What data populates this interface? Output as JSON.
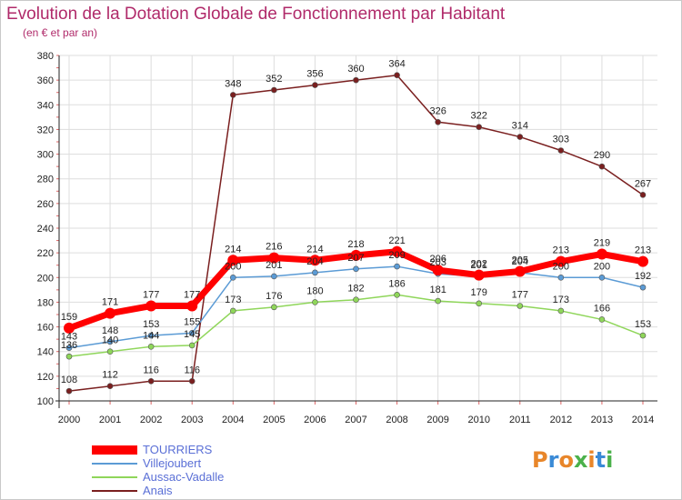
{
  "chart_data": {
    "type": "line",
    "title": "Evolution de la Dotation Globale de Fonctionnement par Habitant",
    "subtitle": "(en € et par an)",
    "x": [
      "2000",
      "2001",
      "2002",
      "2003",
      "2004",
      "2005",
      "2006",
      "2007",
      "2008",
      "2009",
      "2010",
      "2011",
      "2012",
      "2013",
      "2014"
    ],
    "ylim": [
      100,
      380
    ],
    "yticks": [
      100,
      120,
      140,
      160,
      180,
      200,
      220,
      240,
      260,
      280,
      300,
      320,
      340,
      360,
      380
    ],
    "grid": true,
    "legend_position": "bottom-left",
    "series": [
      {
        "name": "Anais",
        "color": "#7a1f1f",
        "values": [
          108,
          112,
          116,
          116,
          348,
          352,
          356,
          360,
          364,
          326,
          322,
          314,
          303,
          290,
          267
        ]
      },
      {
        "name": "Aussac-Vadalle",
        "color": "#8fd65a",
        "values": [
          136,
          140,
          144,
          145,
          173,
          176,
          180,
          182,
          186,
          181,
          179,
          177,
          173,
          166,
          153
        ]
      },
      {
        "name": "Villejoubert",
        "color": "#5b9bd5",
        "values": [
          143,
          148,
          153,
          155,
          200,
          201,
          204,
          207,
          209,
          203,
          201,
          204,
          200,
          200,
          192
        ]
      },
      {
        "name": "TOURRIERS",
        "color": "#ff0000",
        "values": [
          159,
          171,
          177,
          177,
          214,
          216,
          214,
          218,
          221,
          206,
          202,
          205,
          213,
          219,
          213
        ]
      }
    ]
  },
  "legend": {
    "items": [
      {
        "name": "TOURRIERS",
        "color": "#ff0000"
      },
      {
        "name": "Villejoubert",
        "color": "#5b9bd5"
      },
      {
        "name": "Aussac-Vadalle",
        "color": "#8fd65a"
      },
      {
        "name": "Anais",
        "color": "#7a1f1f"
      }
    ]
  },
  "logo": {
    "text": "Proxiti"
  }
}
